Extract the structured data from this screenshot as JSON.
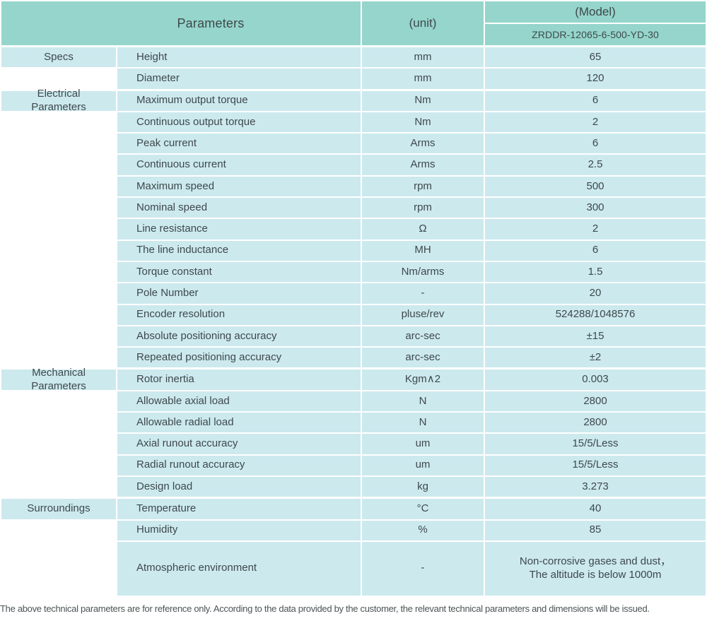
{
  "colors": {
    "header_bg": "#95d5cb",
    "row_bg": "#cce9ee",
    "grid_line": "#ffffff",
    "text": "#3e494c",
    "footer_text": "#4b5456"
  },
  "header": {
    "parameters_label": "Parameters",
    "unit_label": "(unit)",
    "model_label": "(Model)",
    "model_value": "ZRDDR-12065-6-500-YD-30"
  },
  "sections": [
    {
      "category": "Specs",
      "rows": [
        {
          "parameter": "Height",
          "unit": "mm",
          "value": "65"
        },
        {
          "parameter": "Diameter",
          "unit": "mm",
          "value": "120"
        }
      ]
    },
    {
      "category": "Electrical\nParameters",
      "rows": [
        {
          "parameter": "Maximum output torque",
          "unit": "Nm",
          "value": "6"
        },
        {
          "parameter": "Continuous output torque",
          "unit": "Nm",
          "value": "2"
        },
        {
          "parameter": "Peak current",
          "unit": "Arms",
          "value": "6"
        },
        {
          "parameter": "Continuous current",
          "unit": "Arms",
          "value": "2.5"
        },
        {
          "parameter": "Maximum speed",
          "unit": "rpm",
          "value": "500"
        },
        {
          "parameter": "Nominal speed",
          "unit": "rpm",
          "value": "300"
        },
        {
          "parameter": "Line resistance",
          "unit": "Ω",
          "value": "2"
        },
        {
          "parameter": "The line inductance",
          "unit": "MH",
          "value": "6"
        },
        {
          "parameter": "Torque constant",
          "unit": "Nm/arms",
          "value": "1.5"
        },
        {
          "parameter": "Pole Number",
          "unit": "-",
          "value": "20"
        },
        {
          "parameter": "Encoder resolution",
          "unit": "pluse/rev",
          "value": "524288/1048576"
        },
        {
          "parameter": "Absolute positioning accuracy",
          "unit": "arc-sec",
          "value": "±15"
        },
        {
          "parameter": "Repeated positioning accuracy",
          "unit": "arc-sec",
          "value": "±2"
        }
      ]
    },
    {
      "category": "Mechanical\nParameters",
      "rows": [
        {
          "parameter": "Rotor inertia",
          "unit": "Kgm∧2",
          "value": "0.003"
        },
        {
          "parameter": "Allowable axial load",
          "unit": "N",
          "value": "2800"
        },
        {
          "parameter": "Allowable radial load",
          "unit": "N",
          "value": "2800"
        },
        {
          "parameter": "Axial runout accuracy",
          "unit": "um",
          "value": "15/5/Less"
        },
        {
          "parameter": "Radial runout accuracy",
          "unit": "um",
          "value": "15/5/Less"
        },
        {
          "parameter": "Design load",
          "unit": "kg",
          "value": "3.273"
        }
      ]
    },
    {
      "category": "Surroundings",
      "rows": [
        {
          "parameter": "Temperature",
          "unit": "°C",
          "value": "40"
        },
        {
          "parameter": "Humidity",
          "unit": "%",
          "value": "85"
        },
        {
          "parameter": "Atmospheric environment",
          "unit": "-",
          "value": "Non-corrosive gases and dust，\nThe altitude is below 1000m",
          "tall": true
        }
      ]
    }
  ],
  "footer": {
    "note": "The above technical parameters are for reference only. According to the data provided by the customer, the relevant technical parameters and dimensions will be issued."
  }
}
